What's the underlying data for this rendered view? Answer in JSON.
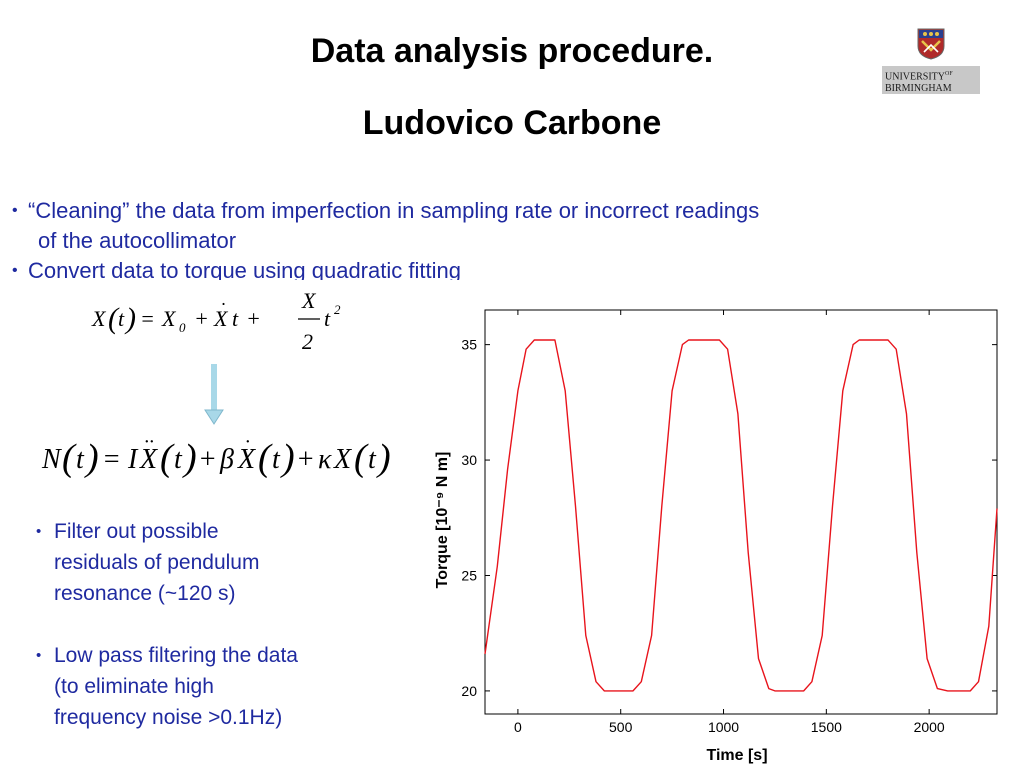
{
  "slide": {
    "title": "Data analysis procedure.",
    "author": "Ludovico Carbone"
  },
  "logo": {
    "line1": "UNIVERSITY",
    "line1_sup": "OF",
    "line2": "BIRMINGHAM"
  },
  "bullets_top": [
    {
      "marker": "•",
      "text": "“Cleaning” the data from imperfection in sampling rate or incorrect readings",
      "continuation": "of the autocollimator"
    },
    {
      "marker": "•",
      "text": "Convert data to torque using quadratic fitting"
    }
  ],
  "bullets_bottom": [
    {
      "marker": "•",
      "lines": [
        "Filter out possible",
        "residuals of pendulum",
        "resonance (~120 s)"
      ]
    },
    {
      "marker": "•",
      "lines": [
        "Low pass filtering the data",
        "(to eliminate high",
        "frequency noise >0.1Hz)"
      ]
    }
  ],
  "colors": {
    "bullet_text": "#1f2aa0",
    "plot_line": "#e8141c",
    "arrow": "#a8d8e8"
  },
  "chart_data": {
    "type": "line",
    "title": "",
    "xlabel": "Time [s]",
    "ylabel": "Torque [10⁻⁹ N m]",
    "xlim": [
      -160,
      2330
    ],
    "ylim": [
      19,
      36.5
    ],
    "xticks": [
      0,
      500,
      1000,
      1500,
      2000
    ],
    "yticks": [
      20,
      25,
      30,
      35
    ],
    "series": [
      {
        "x": [
          -160,
          -100,
          -50,
          0,
          40,
          80,
          180,
          230,
          280,
          330,
          380,
          420,
          560,
          600,
          650,
          700,
          750,
          800,
          830,
          980,
          1020,
          1070,
          1120,
          1170,
          1220,
          1250,
          1390,
          1430,
          1480,
          1530,
          1580,
          1630,
          1660,
          1800,
          1840,
          1890,
          1940,
          1990,
          2040,
          2090,
          2200,
          2240,
          2290,
          2330
        ],
        "y": [
          21.6,
          25.4,
          29.6,
          33.0,
          34.8,
          35.2,
          35.2,
          33.0,
          28.0,
          22.4,
          20.4,
          20.0,
          20.0,
          20.4,
          22.4,
          28.0,
          33.0,
          35.0,
          35.2,
          35.2,
          34.8,
          32.0,
          26.0,
          21.4,
          20.1,
          20.0,
          20.0,
          20.4,
          22.4,
          28.0,
          33.0,
          35.0,
          35.2,
          35.2,
          34.8,
          32.0,
          26.0,
          21.4,
          20.1,
          20.0,
          20.0,
          20.4,
          22.8,
          27.9
        ]
      }
    ],
    "grid": false,
    "legend": "none"
  }
}
